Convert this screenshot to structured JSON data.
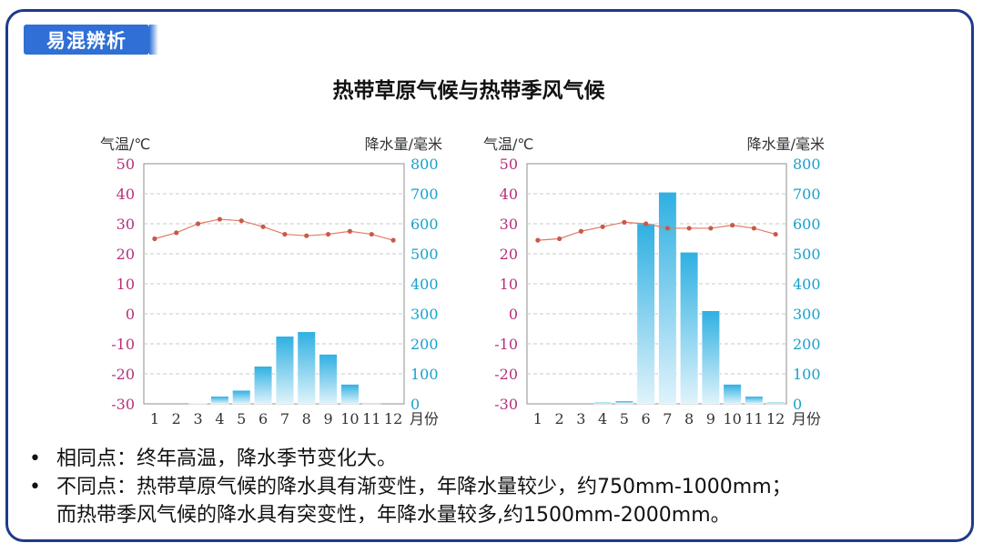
{
  "header": {
    "badge": "易混辨析"
  },
  "title": "热带草原气候与热带季风气候",
  "chart_data": [
    {
      "type": "bar",
      "title": "",
      "categories": [
        "1",
        "2",
        "3",
        "4",
        "5",
        "6",
        "7",
        "8",
        "9",
        "10",
        "11",
        "12"
      ],
      "xlabel": "月份",
      "left_axis_label": "气温/℃",
      "right_axis_label": "降水量/毫米",
      "left_ticks": [
        "50",
        "40",
        "30",
        "20",
        "10",
        "0",
        "-10",
        "-20",
        "-30"
      ],
      "right_ticks": [
        "800",
        "700",
        "600",
        "500",
        "400",
        "300",
        "200",
        "100",
        "0"
      ],
      "temp_ylim": [
        -30,
        50
      ],
      "precip_ylim": [
        0,
        800
      ],
      "grid": true,
      "series": [
        {
          "name": "气温",
          "type": "line",
          "axis": "left",
          "color": "#e07b67",
          "values": [
            25,
            27,
            30,
            31.5,
            31,
            29,
            26.5,
            26,
            26.5,
            27.5,
            26.5,
            24.5
          ]
        },
        {
          "name": "降水量",
          "type": "bar",
          "axis": "right",
          "color": "#3fb6e4",
          "values": [
            0,
            0,
            2,
            25,
            45,
            125,
            225,
            240,
            165,
            65,
            3,
            0
          ]
        }
      ]
    },
    {
      "type": "bar",
      "title": "",
      "categories": [
        "1",
        "2",
        "3",
        "4",
        "5",
        "6",
        "7",
        "8",
        "9",
        "10",
        "11",
        "12"
      ],
      "xlabel": "月份",
      "left_axis_label": "气温/℃",
      "right_axis_label": "降水量/毫米",
      "left_ticks": [
        "50",
        "40",
        "30",
        "20",
        "10",
        "0",
        "-10",
        "-20",
        "-30"
      ],
      "right_ticks": [
        "800",
        "700",
        "600",
        "500",
        "400",
        "300",
        "200",
        "100",
        "0"
      ],
      "temp_ylim": [
        -30,
        50
      ],
      "precip_ylim": [
        0,
        800
      ],
      "grid": true,
      "series": [
        {
          "name": "气温",
          "type": "line",
          "axis": "left",
          "color": "#e07b67",
          "values": [
            24.5,
            25,
            27.5,
            29,
            30.5,
            30,
            28.5,
            28.5,
            28.5,
            29.5,
            28.5,
            26.5
          ]
        },
        {
          "name": "降水量",
          "type": "bar",
          "axis": "right",
          "color": "#3fb6e4",
          "values": [
            0,
            0,
            0,
            5,
            10,
            600,
            705,
            505,
            310,
            65,
            25,
            5
          ]
        }
      ]
    }
  ],
  "notes": {
    "bullet": "•",
    "line1": "相同点：终年高温，降水季节变化大。",
    "line2": "不同点：热带草原气候的降水具有渐变性，年降水量较少，约750mm-1000mm；",
    "line3": "而热带季风气候的降水具有突变性，年降水量较多,约1500mm-2000mm。"
  },
  "colors": {
    "left_tick": "#b5307a",
    "right_tick": "#1aa0cc",
    "border": "#1e3a8a",
    "badge": "#2f6fd6"
  }
}
